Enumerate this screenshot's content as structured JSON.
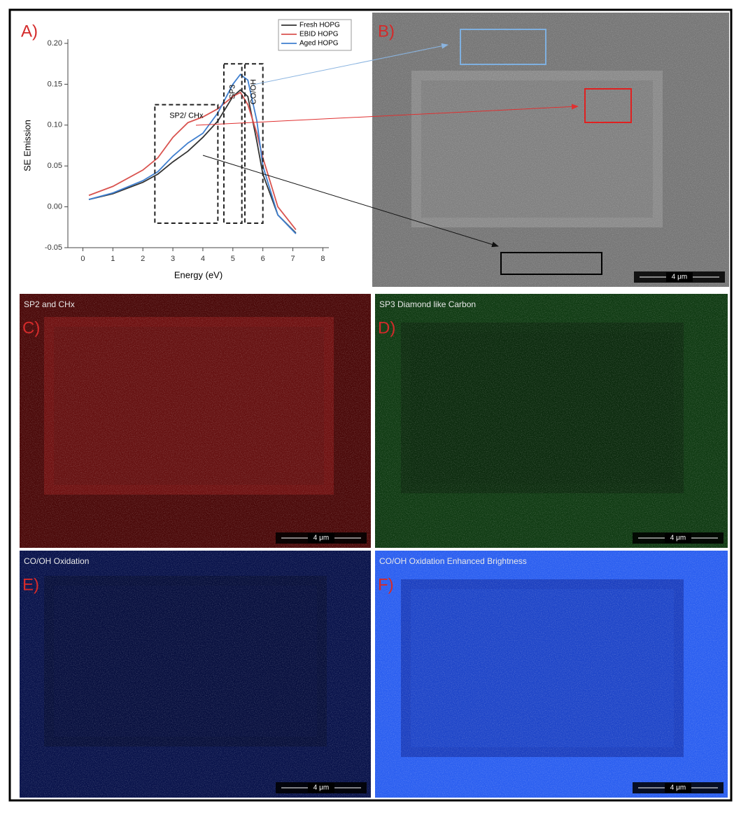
{
  "chart_data": {
    "type": "line",
    "panel_label": "A)",
    "x_label": "Energy (eV)",
    "y_label": "SE Emission",
    "x": [
      0.2,
      1,
      2,
      2.5,
      3,
      3.5,
      4,
      4.5,
      5,
      5.25,
      5.5,
      5.8,
      6,
      6.5,
      7.1
    ],
    "series": [
      {
        "name": "Fresh HOPG",
        "color": "#333333",
        "values": [
          0.009,
          0.016,
          0.03,
          0.04,
          0.055,
          0.068,
          0.085,
          0.105,
          0.135,
          0.143,
          0.135,
          0.08,
          0.04,
          -0.01,
          -0.032
        ]
      },
      {
        "name": "EBID HOPG",
        "color": "#d9534f",
        "values": [
          0.014,
          0.025,
          0.045,
          0.06,
          0.085,
          0.103,
          0.11,
          0.12,
          0.135,
          0.14,
          0.125,
          0.09,
          0.06,
          0.0,
          -0.028
        ]
      },
      {
        "name": "Aged HOPG",
        "color": "#3f7fcf",
        "values": [
          0.009,
          0.017,
          0.032,
          0.043,
          0.062,
          0.078,
          0.09,
          0.115,
          0.15,
          0.162,
          0.155,
          0.105,
          0.05,
          -0.01,
          -0.033
        ]
      }
    ],
    "xlim": [
      -0.5,
      8.2
    ],
    "ylim": [
      -0.05,
      0.2
    ],
    "xticks": [
      0,
      1,
      2,
      3,
      4,
      5,
      6,
      7,
      8
    ],
    "yticks": [
      {
        "value": -0.05,
        "label": "-0.05"
      },
      {
        "value": 0,
        "label": "0.00"
      },
      {
        "value": 0.05,
        "label": "0.05"
      },
      {
        "value": 0.1,
        "label": "0.10"
      },
      {
        "value": 0.15,
        "label": "0.15"
      },
      {
        "value": 0.2,
        "label": "0.20"
      }
    ],
    "regions": [
      {
        "label": "SP2/ CHx",
        "x": [
          2.4,
          4.5
        ],
        "y": [
          -0.02,
          0.125
        ]
      },
      {
        "label": "SP3",
        "x": [
          4.7,
          5.3
        ],
        "y": [
          -0.02,
          0.175
        ]
      },
      {
        "label": "CO/OH",
        "x": [
          5.4,
          6.0
        ],
        "y": [
          -0.02,
          0.175
        ]
      }
    ],
    "legend": "upper right"
  },
  "images": [
    {
      "label": "B)",
      "scale_bar": "4 μm"
    },
    {
      "label": "C)",
      "caption": "SP2 and CHx",
      "scale_bar": "4 μm"
    },
    {
      "label": "D)",
      "caption": "SP3 Diamond like Carbon",
      "scale_bar": "4 μm"
    },
    {
      "label": "E)",
      "caption": "CO/OH Oxidation",
      "scale_bar": "4 μm"
    },
    {
      "label": "F)",
      "caption": "CO/OH Oxidation Enhanced Brightness",
      "scale_bar": "4 μm"
    }
  ]
}
